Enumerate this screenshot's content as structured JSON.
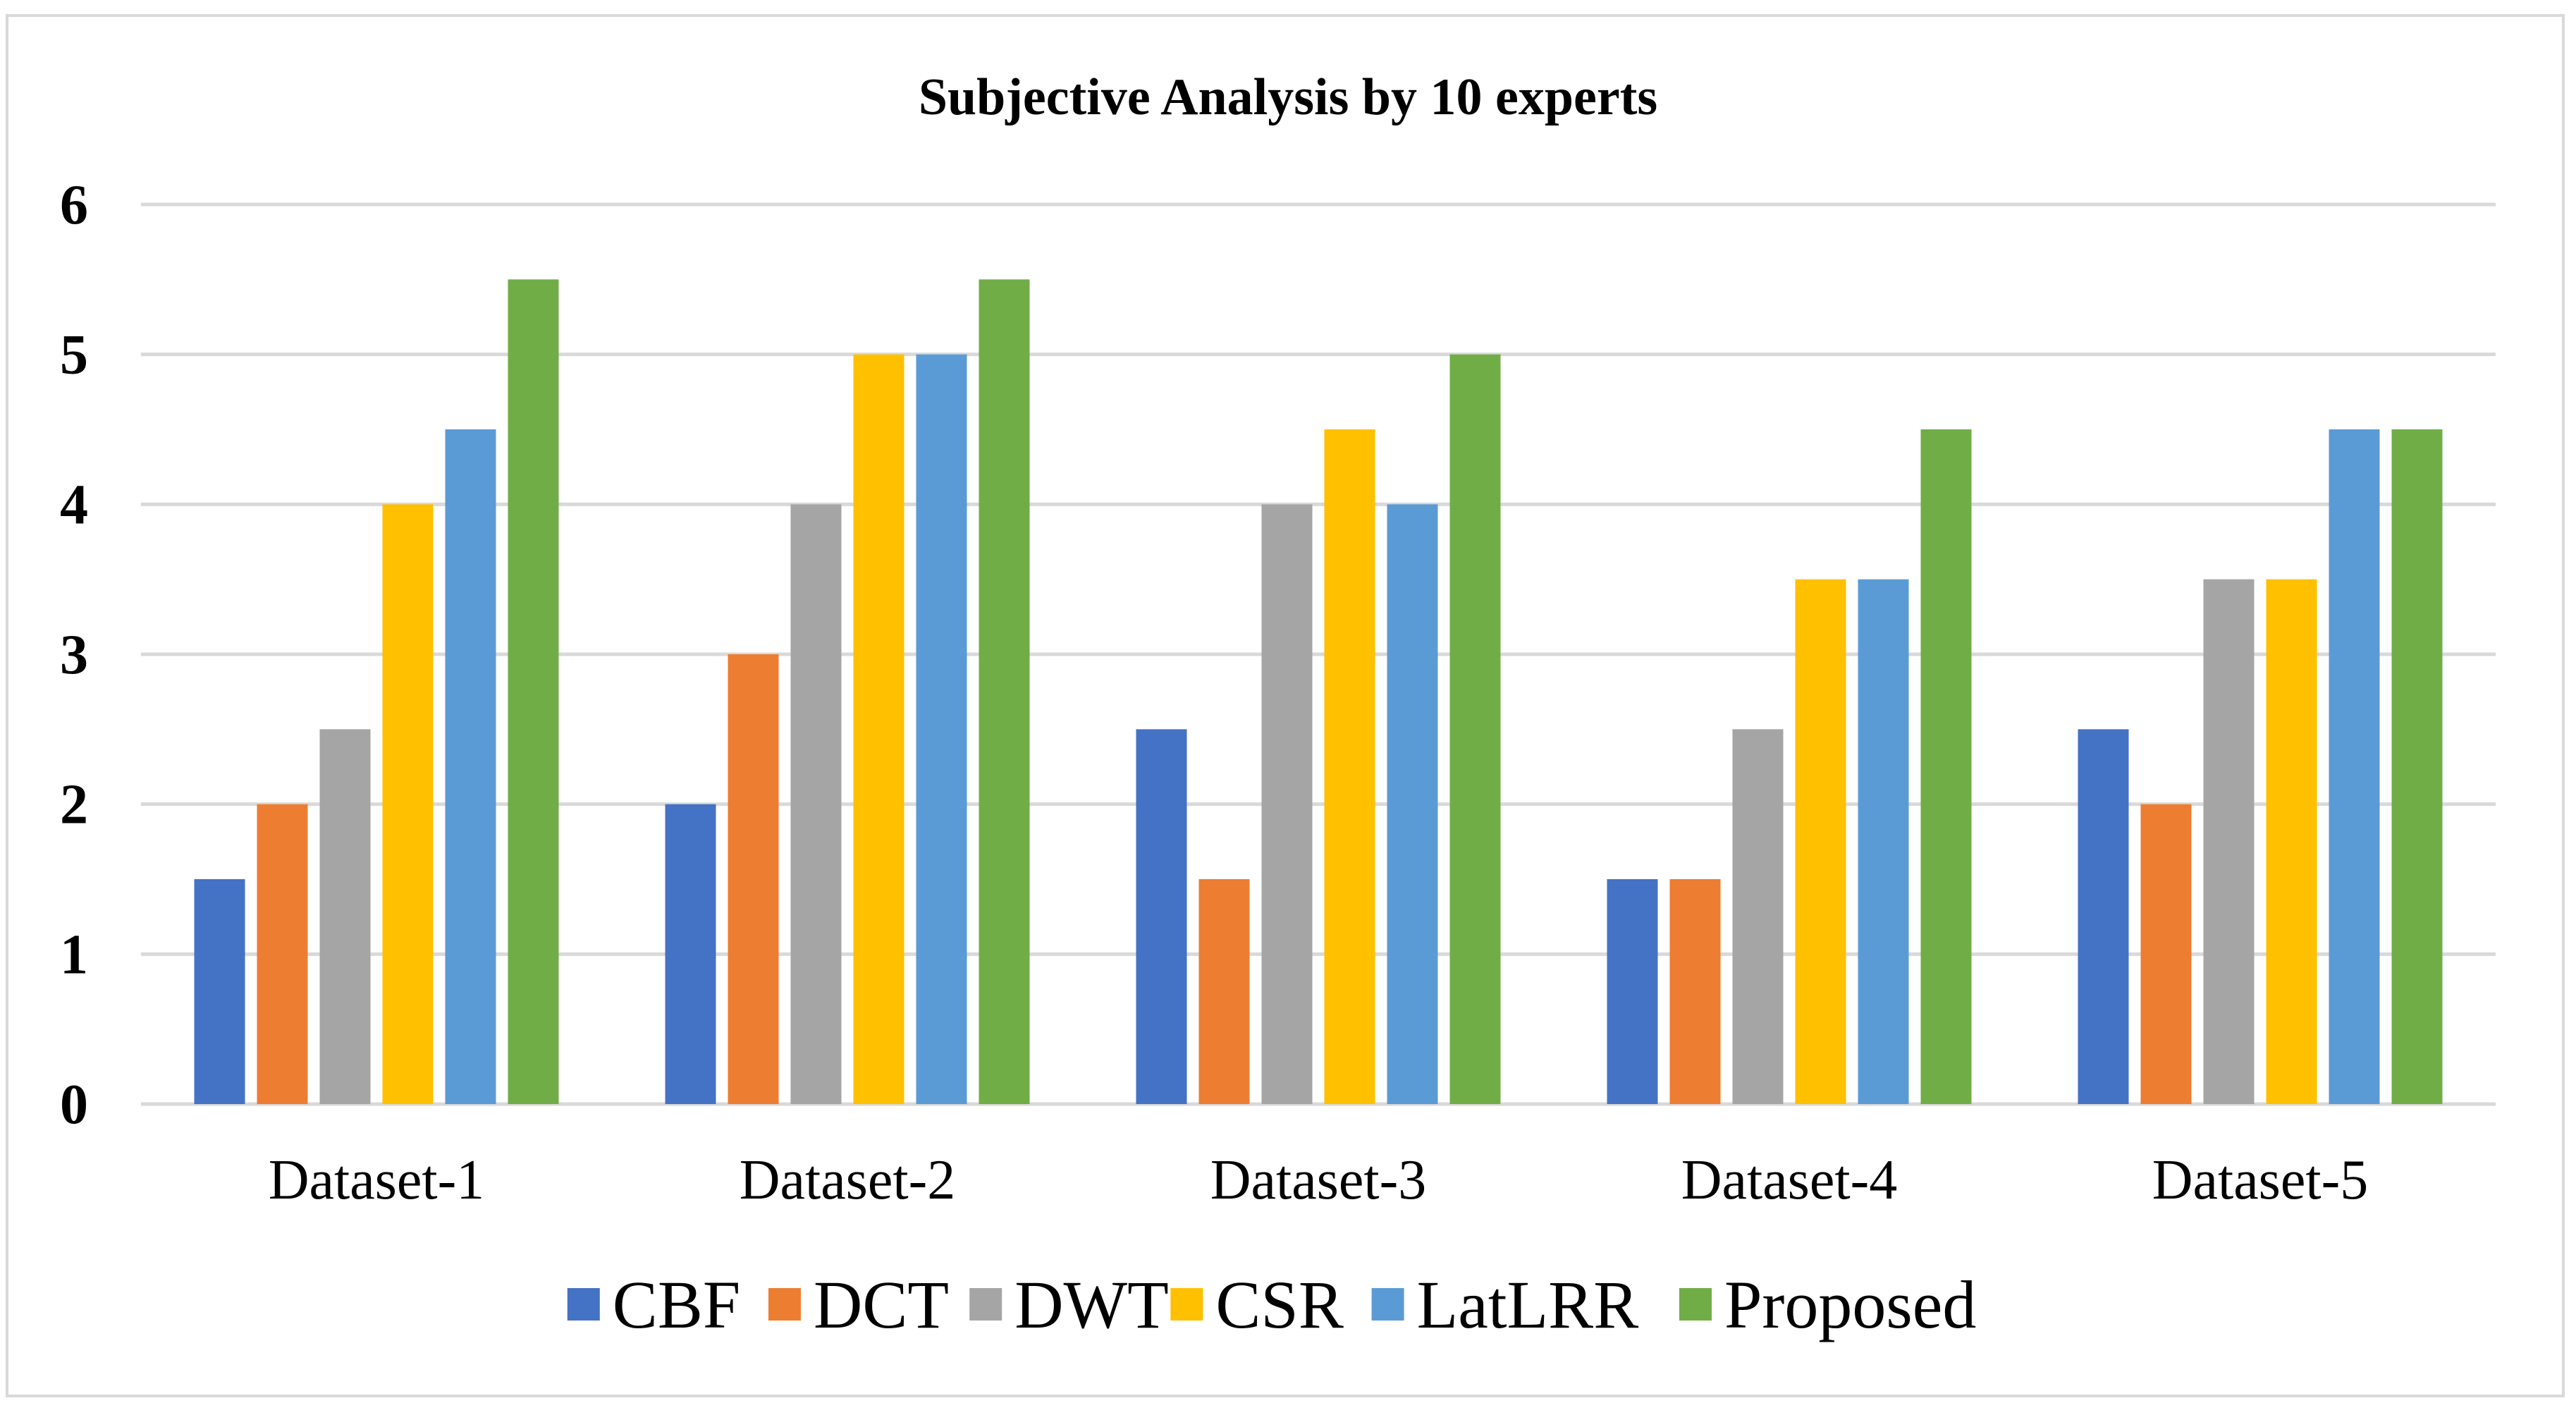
{
  "chart_data": {
    "type": "bar",
    "title": "Subjective Analysis by 10 experts",
    "xlabel": "",
    "ylabel": "",
    "ylim": [
      0,
      6
    ],
    "yticks": [
      0,
      1,
      2,
      3,
      4,
      5,
      6
    ],
    "grid": true,
    "legend_position": "bottom",
    "categories": [
      "Dataset-1",
      "Dataset-2",
      "Dataset-3",
      "Dataset-4",
      "Dataset-5"
    ],
    "series": [
      {
        "name": "CBF",
        "color": "#4472c4",
        "values": [
          1.5,
          2,
          2.5,
          1.5,
          2.5
        ]
      },
      {
        "name": "DCT",
        "color": "#ed7d31",
        "values": [
          2,
          3,
          1.5,
          1.5,
          2
        ]
      },
      {
        "name": "DWT",
        "color": "#a5a5a5",
        "values": [
          2.5,
          4,
          4,
          2.5,
          3.5
        ]
      },
      {
        "name": "CSR",
        "color": "#ffc000",
        "values": [
          4,
          5,
          4.5,
          3.5,
          3.5
        ]
      },
      {
        "name": "LatLRR",
        "color": "#5b9bd5",
        "values": [
          4.5,
          5,
          4,
          3.5,
          4.5
        ]
      },
      {
        "name": "Proposed",
        "color": "#70ad47",
        "values": [
          5.5,
          5.5,
          5,
          4.5,
          4.5
        ]
      }
    ]
  }
}
